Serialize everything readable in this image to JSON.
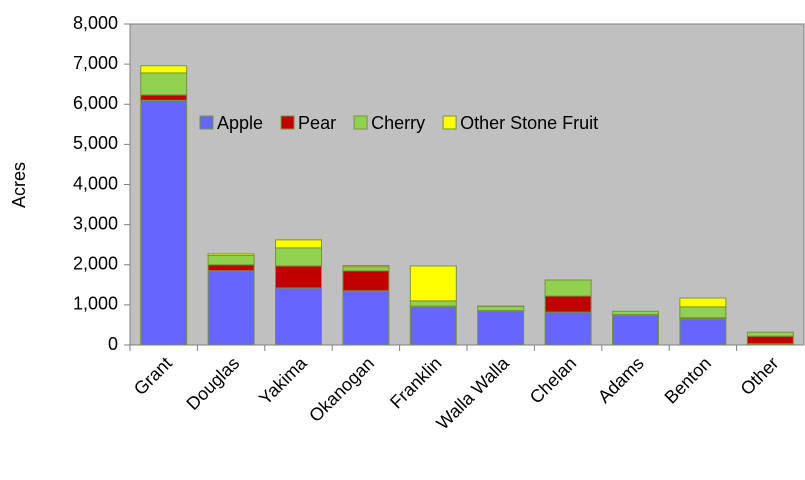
{
  "chart_data": {
    "type": "stacked_bar",
    "ylabel": "Acres",
    "categories": [
      "Grant",
      "Douglas",
      "Yakima",
      "Okanogan",
      "Franklin",
      "Walla Walla",
      "Chelan",
      "Adams",
      "Benton",
      "Other"
    ],
    "series": [
      {
        "name": "Apple",
        "color": "#6666ff",
        "values": [
          6100,
          1850,
          1420,
          1350,
          950,
          850,
          820,
          750,
          650,
          30
        ]
      },
      {
        "name": "Pear",
        "color": "#c00000",
        "values": [
          130,
          150,
          550,
          500,
          20,
          10,
          400,
          10,
          30,
          190
        ]
      },
      {
        "name": "Cherry",
        "color": "#92d050",
        "values": [
          550,
          230,
          450,
          100,
          130,
          100,
          400,
          80,
          270,
          100
        ]
      },
      {
        "name": "Other Stone Fruit",
        "color": "#ffff00",
        "values": [
          180,
          40,
          200,
          30,
          870,
          10,
          0,
          0,
          220,
          0
        ]
      }
    ],
    "ylim": [
      0,
      8000
    ],
    "yticks": [
      0,
      {
        "value": 1000,
        "label": "1,000"
      },
      {
        "value": 2000,
        "label": "2,000"
      },
      {
        "value": 3000,
        "label": "3,000"
      },
      {
        "value": 4000,
        "label": "4,000"
      },
      {
        "value": 5000,
        "label": "5,000"
      },
      {
        "value": 6000,
        "label": "6,000"
      },
      {
        "value": 7000,
        "label": "7,000"
      },
      {
        "value": 8000,
        "label": "8,000"
      }
    ],
    "plot_background": "#c0c0c0"
  }
}
